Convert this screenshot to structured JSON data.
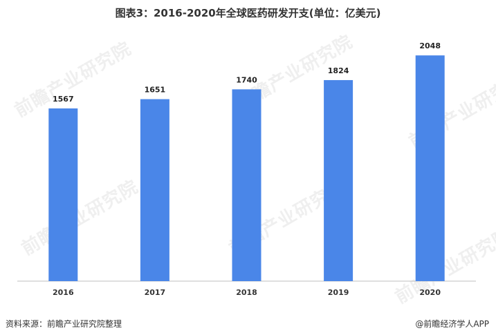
{
  "title": "图表3：2016-2020年全球医药研发开支(单位：亿美元)",
  "watermark_text": "前瞻产业研究院",
  "source": "资料来源：前瞻产业研究院整理",
  "credit": "@前瞻经济学人APP",
  "colors": {
    "bar": "#4a86e8",
    "axis": "#bfbfbf"
  },
  "chart_data": {
    "type": "bar",
    "title": "图表3：2016-2020年全球医药研发开支(单位：亿美元)",
    "categories": [
      "2016",
      "2017",
      "2018",
      "2019",
      "2020"
    ],
    "values": [
      1567,
      1651,
      1740,
      1824,
      2048
    ],
    "ylim": [
      0,
      2300
    ],
    "grid": false,
    "xlabel": "",
    "ylabel": ""
  }
}
